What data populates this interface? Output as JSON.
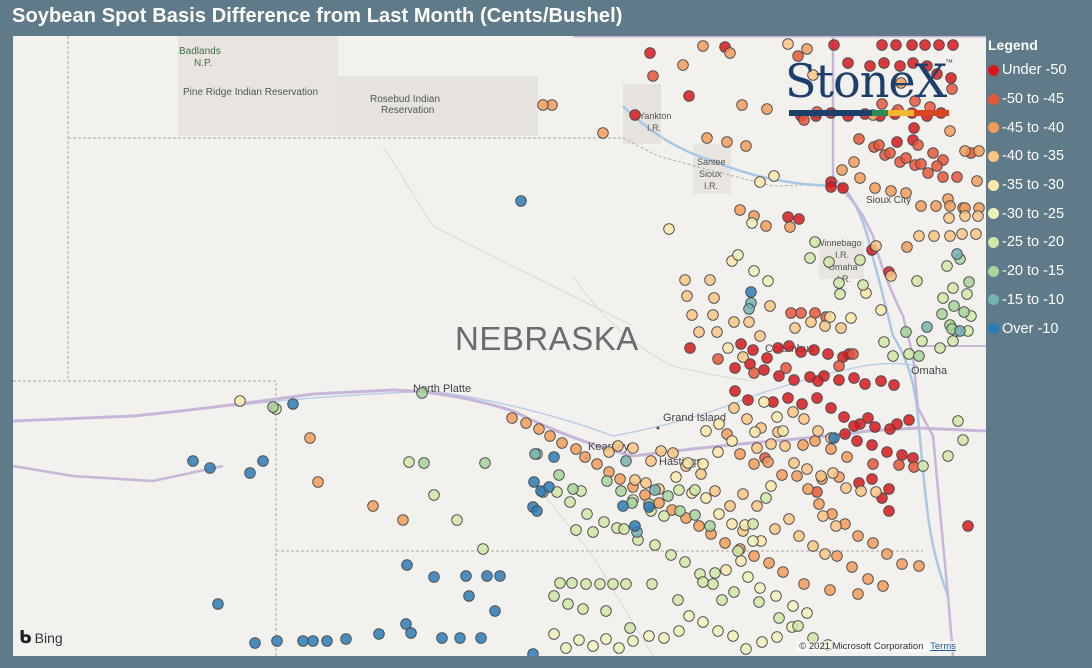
{
  "title": "Soybean Spot Basis Difference from Last Month (Cents/Bushel)",
  "legend": {
    "title": "Legend",
    "items": [
      {
        "label": "Under -50",
        "color": "#d7191c"
      },
      {
        "label": "-50 to -45",
        "color": "#e8563a"
      },
      {
        "label": "-45 to -40",
        "color": "#f39c5a"
      },
      {
        "label": "-40 to -35",
        "color": "#fbc583"
      },
      {
        "label": "-35 to -30",
        "color": "#fde8a8"
      },
      {
        "label": "-30 to -25",
        "color": "#eef2b8"
      },
      {
        "label": "-25 to -20",
        "color": "#cfe8a6"
      },
      {
        "label": "-20 to -15",
        "color": "#a6d49a"
      },
      {
        "label": "-15 to -10",
        "color": "#74b3b4"
      },
      {
        "label": "Over -10",
        "color": "#2c7bb6"
      }
    ]
  },
  "map": {
    "state_label": "NEBRASKA",
    "places": [
      "Badlands N.P.",
      "Pine Ridge Indian Reservation",
      "Rosebud Indian Reservation",
      "Yankton I.R.",
      "Santee Sioux I.R.",
      "Sioux City",
      "Winnebago I.R.",
      "Omaha",
      "Columbus",
      "North Platte",
      "Grand Island",
      "Kearney",
      "Hastings"
    ],
    "logo_text": "StoneX",
    "attribution_provider": "Bing",
    "copyright": "© 2021 Microsoft Corporation",
    "terms_label": "Terms"
  }
}
